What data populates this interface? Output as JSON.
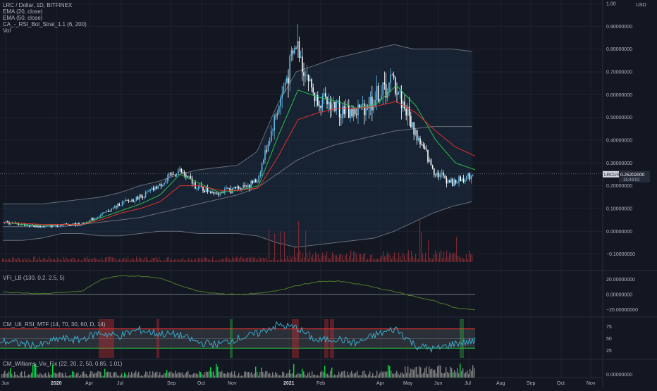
{
  "symbol": {
    "title": "LRC / Dollar, 1D, BITFINEX",
    "studies": [
      "EMA (20, close)",
      "EMA (50, close)",
      "CA_-_RSI_Bol_Strat_1.1 (6, 200)",
      "Vol"
    ],
    "currency": "USD",
    "price_tag": "LRCUSD",
    "last_price": "0.25202000",
    "countdown": "15:43:02"
  },
  "colors": {
    "background": "#131722",
    "grid": "#1f2330",
    "candle_up": "#5fb8e6",
    "candle_down": "#ffffff",
    "ema20": "#2ebd4f",
    "ema50": "#e0302c",
    "bands": "#8c8f99",
    "band_fill": "#1c2e40",
    "volume": "#7a2a32",
    "vfi": "#4e7d2a",
    "rsi_line": "#3ba9c6",
    "rsi_upper": "#e03030",
    "rsi_lower": "#30c040",
    "wvf_gray": "#808080",
    "wvf_lime": "#00e040"
  },
  "chart_data": [
    {
      "type": "candlestick",
      "title": "LRC / Dollar, 1D, BITFINEX",
      "ylim": [
        -0.16,
        1.0
      ],
      "y_ticks": [
        "1.00",
        "0.90000000",
        "0.80000000",
        "0.70000000",
        "0.60000000",
        "0.50000000",
        "0.40000000",
        "0.30000000",
        "0.20000000",
        "0.10000000",
        "0.00000000",
        "−0.10000000"
      ],
      "x_ticks": [
        "Jun",
        "2020",
        "Apr",
        "Jul",
        "Sep",
        "Oct",
        "Nov",
        "2021",
        "Feb",
        "Apr",
        "May",
        "Jun",
        "Jul",
        "Aug",
        "Sep",
        "Oct",
        "Nov"
      ],
      "x": [
        "2019-06",
        "2019-09",
        "2019-12",
        "2020-01",
        "2020-03",
        "2020-05",
        "2020-06",
        "2020-07",
        "2020-08",
        "2020-09",
        "2020-10",
        "2020-11",
        "2020-12",
        "2021-01",
        "2021-01-20",
        "2021-02",
        "2021-02-15",
        "2021-03",
        "2021-04",
        "2021-04-20",
        "2021-05",
        "2021-05-15",
        "2021-06",
        "2021-06-15",
        "2021-07"
      ],
      "series": [
        {
          "name": "EMA (20, close)",
          "values": [
            0.04,
            0.03,
            0.025,
            0.03,
            0.03,
            0.06,
            0.09,
            0.12,
            0.16,
            0.25,
            0.21,
            0.17,
            0.18,
            0.2,
            0.42,
            0.62,
            0.59,
            0.57,
            0.54,
            0.56,
            0.64,
            0.55,
            0.4,
            0.3,
            0.27
          ]
        },
        {
          "name": "EMA (50, close)",
          "values": [
            0.04,
            0.035,
            0.03,
            0.03,
            0.03,
            0.05,
            0.08,
            0.1,
            0.13,
            0.2,
            0.2,
            0.18,
            0.18,
            0.19,
            0.33,
            0.49,
            0.52,
            0.54,
            0.54,
            0.55,
            0.57,
            0.52,
            0.44,
            0.37,
            0.33
          ]
        },
        {
          "name": "Close",
          "values": [
            0.04,
            0.03,
            0.02,
            0.03,
            0.03,
            0.07,
            0.12,
            0.15,
            0.2,
            0.27,
            0.19,
            0.17,
            0.19,
            0.22,
            0.52,
            0.82,
            0.58,
            0.55,
            0.52,
            0.58,
            0.66,
            0.45,
            0.27,
            0.21,
            0.25
          ]
        }
      ],
      "bands": {
        "upper": [
          0.12,
          0.12,
          0.12,
          0.13,
          0.14,
          0.15,
          0.17,
          0.2,
          0.22,
          0.25,
          0.27,
          0.28,
          0.29,
          0.35,
          0.55,
          0.7,
          0.73,
          0.76,
          0.78,
          0.8,
          0.82,
          0.8,
          0.8,
          0.8,
          0.79
        ],
        "basis": [
          0.02,
          0.02,
          0.02,
          0.02,
          0.03,
          0.04,
          0.05,
          0.06,
          0.08,
          0.1,
          0.12,
          0.14,
          0.16,
          0.19,
          0.25,
          0.31,
          0.35,
          0.38,
          0.4,
          0.42,
          0.44,
          0.45,
          0.46,
          0.46,
          0.46
        ],
        "lower": [
          -0.04,
          -0.04,
          -0.03,
          -0.01,
          -0.01,
          -0.02,
          -0.02,
          -0.01,
          0.0,
          0.0,
          -0.01,
          -0.01,
          -0.01,
          -0.02,
          -0.05,
          -0.07,
          -0.06,
          -0.05,
          -0.04,
          -0.03,
          0.0,
          0.04,
          0.08,
          0.11,
          0.13
        ]
      }
    },
    {
      "type": "line",
      "title": "VFI_LB (130, 0.2, 2.5, 5)",
      "ylim": [
        -28,
        28
      ],
      "y_ticks": [
        "20.00000000",
        "0.00000000",
        "−20.00000000"
      ],
      "series": [
        {
          "name": "VFI",
          "values": [
            3,
            2,
            1,
            3,
            4,
            20,
            25,
            24,
            22,
            12,
            4,
            1,
            0,
            2,
            5,
            12,
            17,
            18,
            14,
            9,
            3,
            -3,
            -9,
            -18,
            -20
          ]
        }
      ]
    },
    {
      "type": "line",
      "title": "CM_Ult_RSI_MTF (14, 70, 30, 60, D, 14)",
      "ylim": [
        10,
        90
      ],
      "y_ticks": [
        "75",
        "50",
        "25"
      ],
      "levels": [
        70,
        30
      ],
      "series": [
        {
          "name": "RSI",
          "values": [
            45,
            40,
            35,
            50,
            47,
            62,
            55,
            68,
            60,
            58,
            42,
            38,
            50,
            60,
            78,
            72,
            45,
            50,
            40,
            58,
            70,
            35,
            28,
            40,
            45
          ]
        }
      ]
    },
    {
      "type": "bar",
      "title": "CM_Williams_Vix_Fix (22, 20, 2, 50, 0.85, 1.01)",
      "y_ticks": [
        "0.00000000"
      ]
    }
  ]
}
